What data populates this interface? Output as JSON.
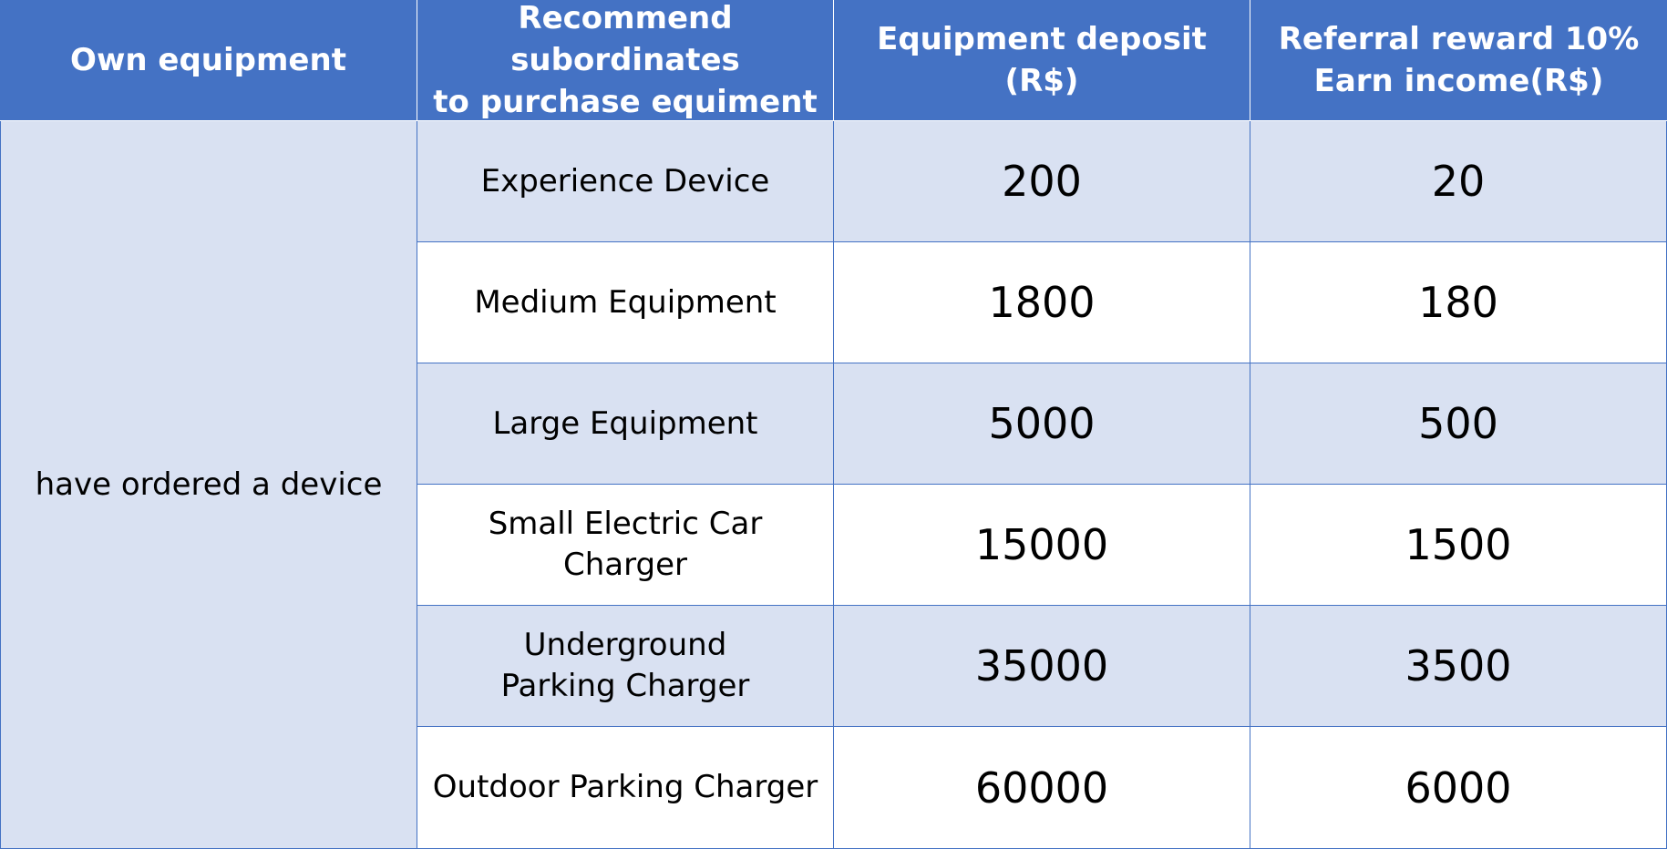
{
  "header": {
    "col1": "Own equipment",
    "col2_line1": "Recommend subordinates",
    "col2_line2": "to purchase equiment",
    "col3_line1": "Equipment deposit",
    "col3_line2": "(R$)",
    "col4_line1": "Referral reward 10%",
    "col4_line2": "Earn income(R$)"
  },
  "own_equipment_value": "have ordered a device",
  "rows": [
    {
      "name_line1": "Experience Device",
      "name_line2": "",
      "deposit": "200",
      "reward": "20"
    },
    {
      "name_line1": "Medium Equipment",
      "name_line2": "",
      "deposit": "1800",
      "reward": "180"
    },
    {
      "name_line1": "Large Equipment",
      "name_line2": "",
      "deposit": "5000",
      "reward": "500"
    },
    {
      "name_line1": "Small Electric Car Charger",
      "name_line2": "",
      "deposit": "15000",
      "reward": "1500"
    },
    {
      "name_line1": "Underground",
      "name_line2": "Parking Charger",
      "deposit": "35000",
      "reward": "3500"
    },
    {
      "name_line1": "Outdoor Parking Charger",
      "name_line2": "",
      "deposit": "60000",
      "reward": "6000"
    }
  ],
  "colors": {
    "header_bg": "#4472c4",
    "band_bg": "#d9e1f2",
    "plain_bg": "#ffffff",
    "border": "#4472c4"
  }
}
